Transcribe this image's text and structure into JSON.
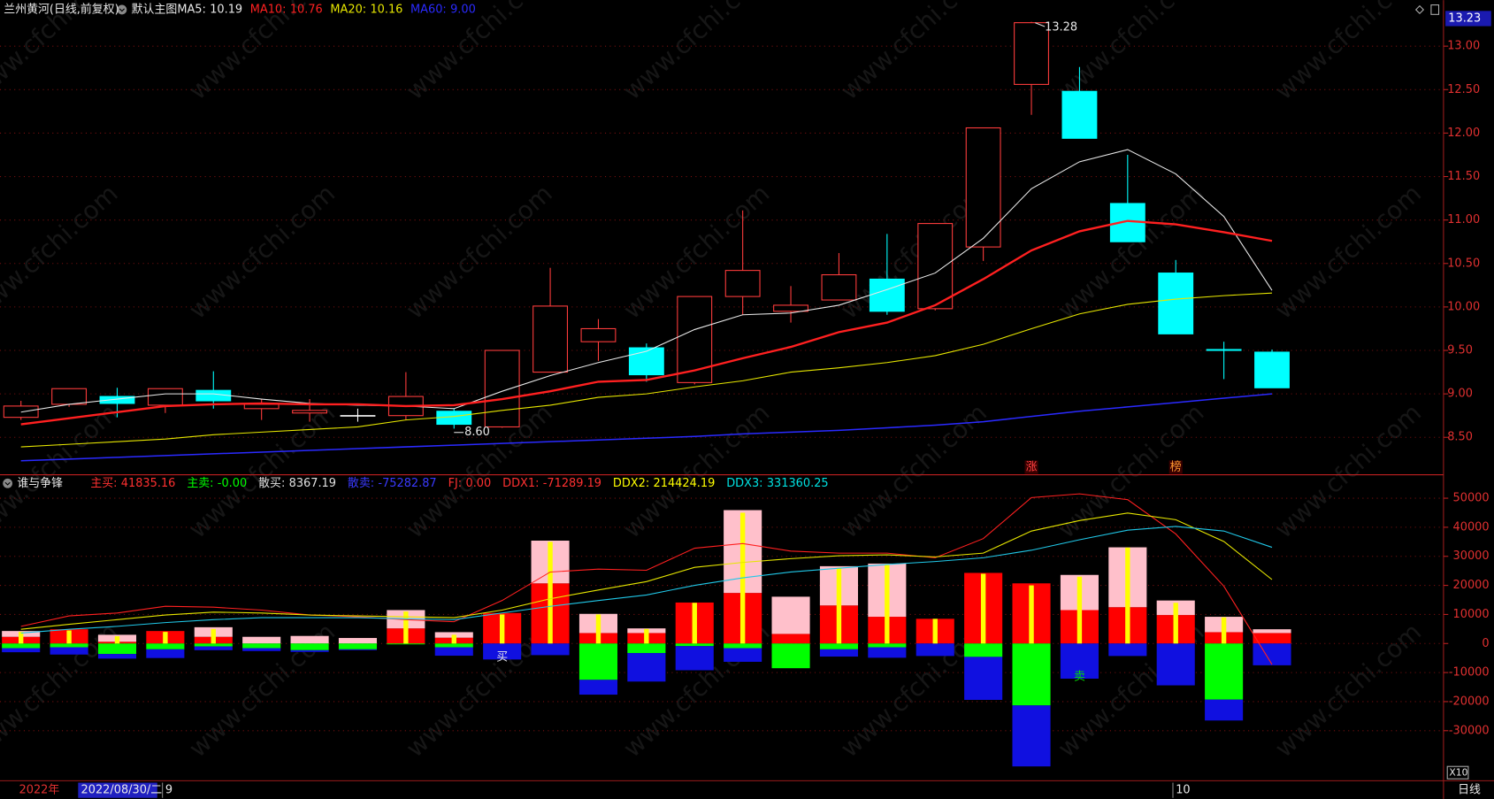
{
  "watermark": "www.cfchi.com",
  "period": "日线",
  "zoom": "X10",
  "year_label": "2022年",
  "cursor_date": "2022/08/30/二",
  "chart_data": [
    {
      "type": "candlestick",
      "title": "兰州黄河(日线,前复权)",
      "subtitle": "默认主图",
      "up_color": "#ff3c3c",
      "down_color": "#00ffff",
      "flat_color": "#ffffff",
      "open": [
        8.73,
        8.88,
        8.97,
        8.87,
        9.04,
        8.83,
        8.78,
        8.75,
        8.75,
        8.8,
        8.62,
        9.25,
        9.6,
        9.53,
        9.13,
        10.12,
        9.95,
        10.08,
        10.32,
        9.98,
        10.69,
        12.56,
        12.48,
        11.19,
        10.39,
        9.51,
        9.48
      ],
      "high": [
        8.92,
        9.06,
        9.07,
        9.06,
        9.26,
        8.94,
        8.94,
        8.83,
        9.25,
        8.83,
        9.5,
        10.45,
        9.86,
        9.58,
        10.12,
        11.11,
        10.24,
        10.62,
        10.84,
        10.96,
        12.06,
        13.28,
        12.76,
        11.75,
        10.54,
        9.6,
        9.51
      ],
      "low": [
        8.7,
        8.85,
        8.73,
        8.78,
        8.83,
        8.7,
        8.68,
        8.68,
        8.7,
        8.6,
        8.61,
        9.25,
        9.38,
        9.14,
        9.11,
        9.91,
        9.82,
        10.08,
        9.91,
        9.96,
        10.53,
        12.21,
        11.94,
        10.75,
        9.69,
        9.17,
        9.07
      ],
      "close": [
        8.86,
        9.06,
        8.89,
        9.06,
        8.92,
        8.88,
        8.81,
        8.75,
        8.97,
        8.65,
        9.5,
        10.01,
        9.75,
        9.22,
        10.12,
        10.42,
        10.02,
        10.37,
        9.95,
        10.96,
        12.06,
        13.27,
        11.94,
        10.75,
        9.69,
        9.5,
        9.07
      ],
      "series": [
        {
          "name": "MA5:",
          "legend_label": "10.19",
          "color": "#e8e8e8",
          "width": 1,
          "values": [
            8.79,
            8.88,
            8.94,
            9.0,
            9.0,
            8.94,
            8.89,
            8.87,
            8.86,
            8.83,
            9.03,
            9.21,
            9.36,
            9.49,
            9.74,
            9.91,
            9.93,
            10.02,
            10.2,
            10.39,
            10.79,
            11.36,
            11.67,
            11.81,
            11.53,
            11.04,
            10.19
          ]
        },
        {
          "name": "MA10:",
          "legend_label": "10.76",
          "color": "#ff2020",
          "width": 2.2,
          "values": [
            8.65,
            8.72,
            8.79,
            8.86,
            8.88,
            8.89,
            8.88,
            8.88,
            8.86,
            8.87,
            8.94,
            9.03,
            9.14,
            9.16,
            9.27,
            9.41,
            9.54,
            9.71,
            9.82,
            10.02,
            10.32,
            10.65,
            10.87,
            10.99,
            10.95,
            10.86,
            10.76
          ]
        },
        {
          "name": "MA20:",
          "legend_label": "10.16",
          "color": "#e6e600",
          "width": 1,
          "values": [
            8.39,
            8.42,
            8.45,
            8.48,
            8.53,
            8.56,
            8.59,
            8.62,
            8.7,
            8.74,
            8.81,
            8.87,
            8.96,
            9.0,
            9.08,
            9.15,
            9.25,
            9.3,
            9.36,
            9.44,
            9.57,
            9.75,
            9.92,
            10.03,
            10.09,
            10.13,
            10.16
          ]
        },
        {
          "name": "MA60:",
          "legend_label": "9.00",
          "color": "#2a2aff",
          "width": 1.4,
          "values": [
            8.23,
            8.25,
            8.27,
            8.29,
            8.31,
            8.33,
            8.35,
            8.37,
            8.39,
            8.41,
            8.43,
            8.45,
            8.47,
            8.49,
            8.51,
            8.54,
            8.56,
            8.58,
            8.61,
            8.64,
            8.68,
            8.74,
            8.8,
            8.85,
            8.9,
            8.95,
            9.0
          ]
        }
      ],
      "high_label": "13.28",
      "low_label": "8.60",
      "cursor_price": 13.23,
      "signals": [
        null,
        null,
        null,
        null,
        null,
        null,
        null,
        null,
        null,
        null,
        null,
        null,
        null,
        null,
        null,
        null,
        null,
        null,
        null,
        null,
        null,
        {
          "text": "涨",
          "color": "#ff4040"
        },
        null,
        null,
        {
          "text": "榜",
          "color": "#ff9a30"
        },
        null,
        null
      ],
      "ylim": [
        8.08,
        13.31
      ],
      "yticks": [
        {
          "value": 8.5,
          "label": "8.50"
        },
        {
          "value": 9,
          "label": "9.00"
        },
        {
          "value": 9.5,
          "label": "9.50"
        },
        {
          "value": 10,
          "label": "10.00"
        },
        {
          "value": 10.5,
          "label": "10.50"
        },
        {
          "value": 11,
          "label": "11.00"
        },
        {
          "value": 11.5,
          "label": "11.50"
        },
        {
          "value": 12,
          "label": "12.00"
        },
        {
          "value": 12.5,
          "label": "12.50"
        },
        {
          "value": 13,
          "label": "13.00"
        }
      ],
      "grid": true
    },
    {
      "type": "bar",
      "title": "谁与争锋",
      "categories": [
        null,
        null,
        null,
        "9",
        null,
        null,
        null,
        null,
        null,
        null,
        null,
        null,
        null,
        null,
        null,
        null,
        null,
        null,
        null,
        null,
        null,
        null,
        null,
        null,
        "10",
        null,
        null
      ],
      "legend": [
        {
          "name": "主买:",
          "label": "41835.16",
          "color": "#ff3030"
        },
        {
          "name": "主卖:",
          "label": "-0.00",
          "color": "#00ff00"
        },
        {
          "name": "散买:",
          "label": "8367.19",
          "color": "#e0e0e0"
        },
        {
          "name": "散卖:",
          "label": "-75282.87",
          "color": "#3a3aff"
        },
        {
          "name": "FJ:",
          "label": "0.00",
          "color": "#ff3030"
        },
        {
          "name": "DDX1:",
          "label": "-71289.19",
          "color": "#ff3030"
        },
        {
          "name": "DDX2:",
          "label": "214424.19",
          "color": "#ffff00"
        },
        {
          "name": "DDX3:",
          "label": "331360.25",
          "color": "#00e0e0"
        }
      ],
      "series": [
        {
          "kind": "bar",
          "color": "#ff0000",
          "values": [
            2300,
            4900,
            600,
            4300,
            2300,
            0,
            0,
            0,
            5200,
            2000,
            10500,
            20700,
            3600,
            3600,
            14100,
            17400,
            3300,
            13100,
            9200,
            8500,
            24300,
            20700,
            11500,
            12500,
            9800,
            3900,
            3600
          ]
        },
        {
          "kind": "bar",
          "color": "#ffc0cb",
          "values": [
            2000,
            0,
            2400,
            0,
            3300,
            2300,
            2600,
            1900,
            6300,
            1900,
            0,
            14700,
            6600,
            1600,
            0,
            28500,
            12800,
            13500,
            18300,
            0,
            0,
            0,
            12100,
            20600,
            5000,
            5300,
            1300
          ]
        },
        {
          "kind": "bar",
          "color": "#00ff00",
          "values": [
            -1600,
            -1300,
            -3600,
            -2000,
            -1000,
            -1600,
            -2300,
            -2000,
            -300,
            -1300,
            0,
            0,
            -12500,
            -3300,
            -900,
            -1600,
            -8500,
            -2000,
            -1300,
            0,
            -4600,
            -21300,
            0,
            0,
            0,
            -19300,
            0
          ]
        },
        {
          "kind": "bar",
          "color": "#1010e0",
          "values": [
            -1400,
            -2500,
            -1600,
            -3000,
            -1300,
            -1000,
            -600,
            -300,
            0,
            -2900,
            -5500,
            -4000,
            -5100,
            -9800,
            -8300,
            -4700,
            0,
            -2500,
            -3600,
            -4300,
            -14800,
            -21000,
            -12100,
            -4300,
            -14400,
            -7200,
            -7500
          ]
        },
        {
          "kind": "thin",
          "color": "#ffff00",
          "values": [
            4000,
            4500,
            2500,
            4000,
            5000,
            0,
            0,
            0,
            11000,
            3000,
            10000,
            35000,
            10000,
            5000,
            14000,
            45000,
            0,
            26000,
            27000,
            8500,
            24000,
            20000,
            23000,
            33000,
            14000,
            9000,
            0
          ]
        },
        {
          "kind": "line",
          "color": "#ff2020",
          "values": [
            5900,
            9500,
            10500,
            12800,
            12500,
            11500,
            9800,
            9200,
            8200,
            7500,
            14800,
            24600,
            25600,
            25200,
            32800,
            34400,
            31800,
            31100,
            31100,
            29500,
            36100,
            50200,
            51500,
            49500,
            37700,
            19700,
            -7200
          ]
        },
        {
          "kind": "line",
          "color": "#e6e600",
          "values": [
            4900,
            6600,
            8200,
            9800,
            10800,
            10500,
            9800,
            9500,
            9200,
            8900,
            11500,
            15400,
            18400,
            21300,
            26200,
            27900,
            29200,
            30200,
            30500,
            29800,
            31100,
            38700,
            42300,
            44900,
            42600,
            35100,
            22000
          ]
        },
        {
          "kind": "line",
          "color": "#20c8e8",
          "values": [
            3600,
            4900,
            5900,
            7200,
            8200,
            8900,
            8900,
            8900,
            8500,
            8200,
            10500,
            12800,
            14800,
            16700,
            20000,
            22600,
            24600,
            25900,
            27200,
            28200,
            29500,
            32100,
            35700,
            39000,
            40300,
            38700,
            33100
          ]
        }
      ],
      "signals": [
        null,
        null,
        null,
        null,
        null,
        null,
        null,
        null,
        null,
        null,
        {
          "text": "买",
          "color": "#e8e8e8"
        },
        null,
        null,
        null,
        null,
        null,
        null,
        null,
        null,
        null,
        null,
        null,
        {
          "text": "卖",
          "color": "#00e000"
        },
        null,
        null,
        null,
        null
      ],
      "ylim": [
        -46900,
        57400
      ],
      "yticks": [
        -30000,
        -20000,
        -10000,
        0,
        10000,
        20000,
        30000,
        40000,
        50000
      ],
      "grid": true
    }
  ]
}
